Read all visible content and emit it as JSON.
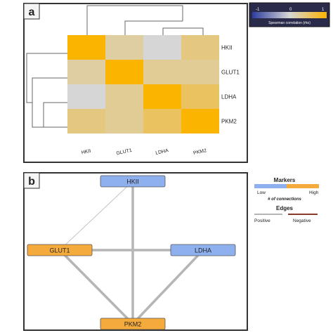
{
  "panel_a": {
    "label": "a",
    "colorbar": {
      "tick_min": "-1",
      "tick_mid": "0",
      "tick_max": "1",
      "caption": "Spearman correlation (rho)",
      "colors": {
        "negative": "#2c3e9e",
        "zero": "#d6d6d6",
        "positive": "#fbb400"
      }
    }
  },
  "panel_b": {
    "label": "b",
    "legend": {
      "markers_title": "Markers",
      "low_label": "Low",
      "high_label": "High",
      "connections_label": "# of connections",
      "edges_title": "Edges",
      "positive_label": "Positive",
      "negative_label": "Negative",
      "low_color": "#8fb0ee",
      "high_color": "#f5aa3c",
      "positive_color": "#b5b5b5",
      "negative_color": "#8a3a2a"
    },
    "nodes": [
      {
        "id": "HKII",
        "label": "HKII",
        "level": "low"
      },
      {
        "id": "GLUT1",
        "label": "GLUT1",
        "level": "high"
      },
      {
        "id": "LDHA",
        "label": "LDHA",
        "level": "low"
      },
      {
        "id": "PKM2",
        "label": "PKM2",
        "level": "high"
      }
    ],
    "edges": [
      {
        "source": "HKII",
        "target": "PKM2",
        "sign": "positive",
        "weight": "strong"
      },
      {
        "source": "HKII",
        "target": "GLUT1",
        "sign": "positive",
        "weight": "weak"
      },
      {
        "source": "GLUT1",
        "target": "LDHA",
        "sign": "positive",
        "weight": "strong"
      },
      {
        "source": "GLUT1",
        "target": "PKM2",
        "sign": "positive",
        "weight": "strong"
      },
      {
        "source": "LDHA",
        "target": "PKM2",
        "sign": "positive",
        "weight": "strong"
      }
    ]
  },
  "chart_data": {
    "type": "heatmap",
    "rows": [
      "HKII",
      "GLUT1",
      "LDHA",
      "PKM2"
    ],
    "columns": [
      "HKII",
      "GLUT1",
      "LDHA",
      "PKM2"
    ],
    "values": [
      [
        1.0,
        0.25,
        0.0,
        0.4
      ],
      [
        0.25,
        1.0,
        0.3,
        0.3
      ],
      [
        0.0,
        0.3,
        1.0,
        0.55
      ],
      [
        0.4,
        0.3,
        0.55,
        1.0
      ]
    ],
    "zlim": [
      -1,
      1
    ],
    "dendrogram": "rows and columns",
    "colorbar_label": "Spearman correlation (rho)"
  }
}
